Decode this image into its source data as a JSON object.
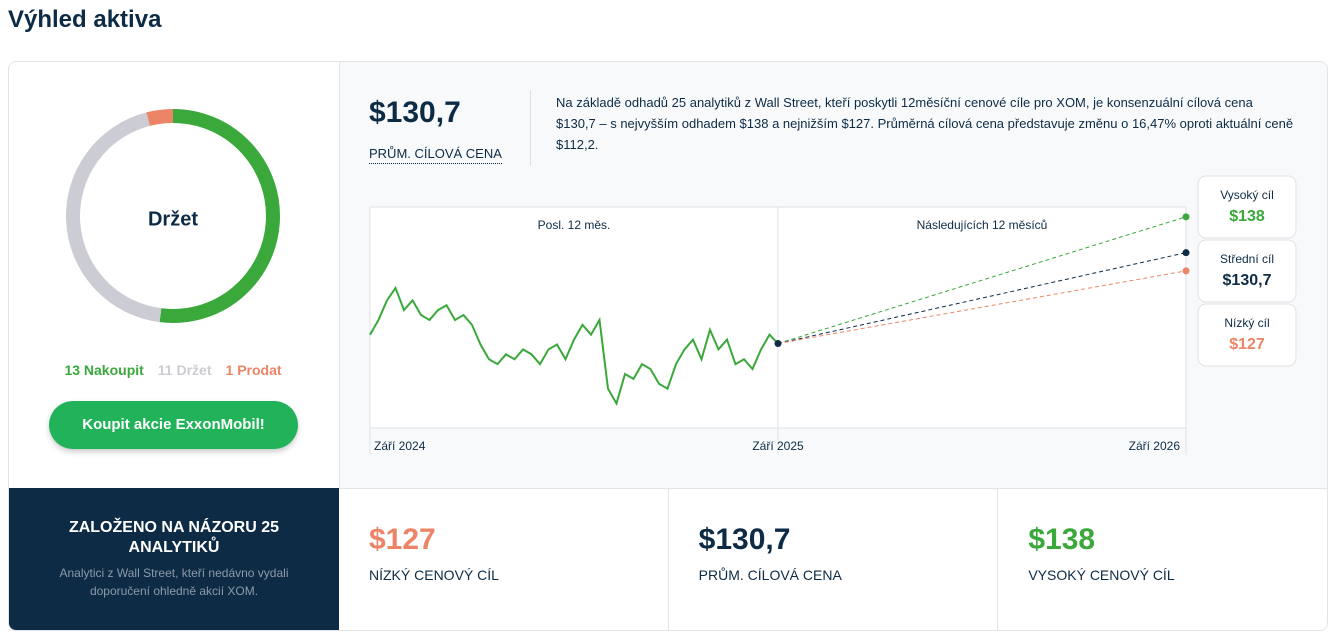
{
  "title": "Výhled aktiva",
  "summary": {
    "value": "$130,7",
    "label": "PRŮM. CÍLOVÁ CENA",
    "text": "Na základě odhadů 25 analytiků z Wall Street, kteří poskytli 12měsíční cenové cíle pro XOM, je konsenzuální cílová cena $130,7 – s nejvyšším odhadem $138 a nejnižším $127. Průměrná cílová cena představuje změnu o 16,47% oproti aktuální ceně $112,2."
  },
  "button": "Koupit akcie ExxonMobil!",
  "basis": {
    "title": "ZALOŽENO NA NÁZORU 25 ANALYTIKŮ",
    "text": "Analytici z Wall Street, kteří nedávno vydali doporučení ohledně akcií XOM."
  },
  "cards": [
    {
      "value": "$127",
      "label": "NÍZKÝ CENOVÝ CÍL",
      "color": "#ec8468"
    },
    {
      "value": "$130,7",
      "label": "PRŮM. CÍLOVÁ CENA",
      "color": "#0d2b45"
    },
    {
      "value": "$138",
      "label": "VYSOKÝ CENOVÝ CÍL",
      "color": "#3aa83a"
    }
  ],
  "chart_data": [
    {
      "type": "donut",
      "center_label": "Držet",
      "categories": [
        "Nakoupit",
        "Držet",
        "Prodat"
      ],
      "values": [
        13,
        11,
        1
      ],
      "colors": [
        "#3aa83a",
        "#cccdd4",
        "#ec8468"
      ]
    },
    {
      "type": "line",
      "period_labels": [
        "Posl. 12 měs.",
        "Následujících 12 měsíců"
      ],
      "xlim": [
        0,
        24
      ],
      "xticks": [
        {
          "value": 0,
          "label": "Září 2024"
        },
        {
          "value": 12,
          "label": "Září 2025"
        },
        {
          "value": 24,
          "label": "Září 2026"
        }
      ],
      "ylim": [
        95,
        140
      ],
      "series": [
        {
          "color": "#3aa83a",
          "x": [
            0,
            0.25,
            0.5,
            0.75,
            1,
            1.25,
            1.5,
            1.75,
            2,
            2.25,
            2.5,
            2.75,
            3,
            3.25,
            3.5,
            3.75,
            4,
            4.25,
            4.5,
            4.75,
            5,
            5.25,
            5.5,
            5.75,
            6,
            6.25,
            6.5,
            6.75,
            7,
            7.25,
            7.5,
            7.75,
            8,
            8.25,
            8.5,
            8.75,
            9,
            9.25,
            9.5,
            9.75,
            10,
            10.25,
            10.5,
            10.75,
            11,
            11.25,
            11.5,
            11.75,
            12
          ],
          "values": [
            114,
            117,
            121,
            123.5,
            119,
            121,
            118,
            117,
            119,
            120,
            117,
            118,
            116,
            112,
            109,
            108,
            110,
            109,
            111,
            110,
            108,
            111,
            112,
            109,
            113,
            116,
            114,
            117,
            103,
            100,
            106,
            105,
            108,
            107,
            104,
            103,
            108,
            111,
            113,
            109,
            115,
            111,
            113,
            108,
            109,
            107,
            111,
            114,
            112.2
          ]
        }
      ],
      "forecast": {
        "names": [
          "Vysoký cíl",
          "Střední cíl",
          "Nízký cíl"
        ],
        "values": [
          138,
          130.7,
          127
        ],
        "value_labels": [
          "$138",
          "$130,7",
          "$127"
        ],
        "colors": [
          "#3aa83a",
          "#0d2b45",
          "#ec8468"
        ]
      }
    }
  ]
}
